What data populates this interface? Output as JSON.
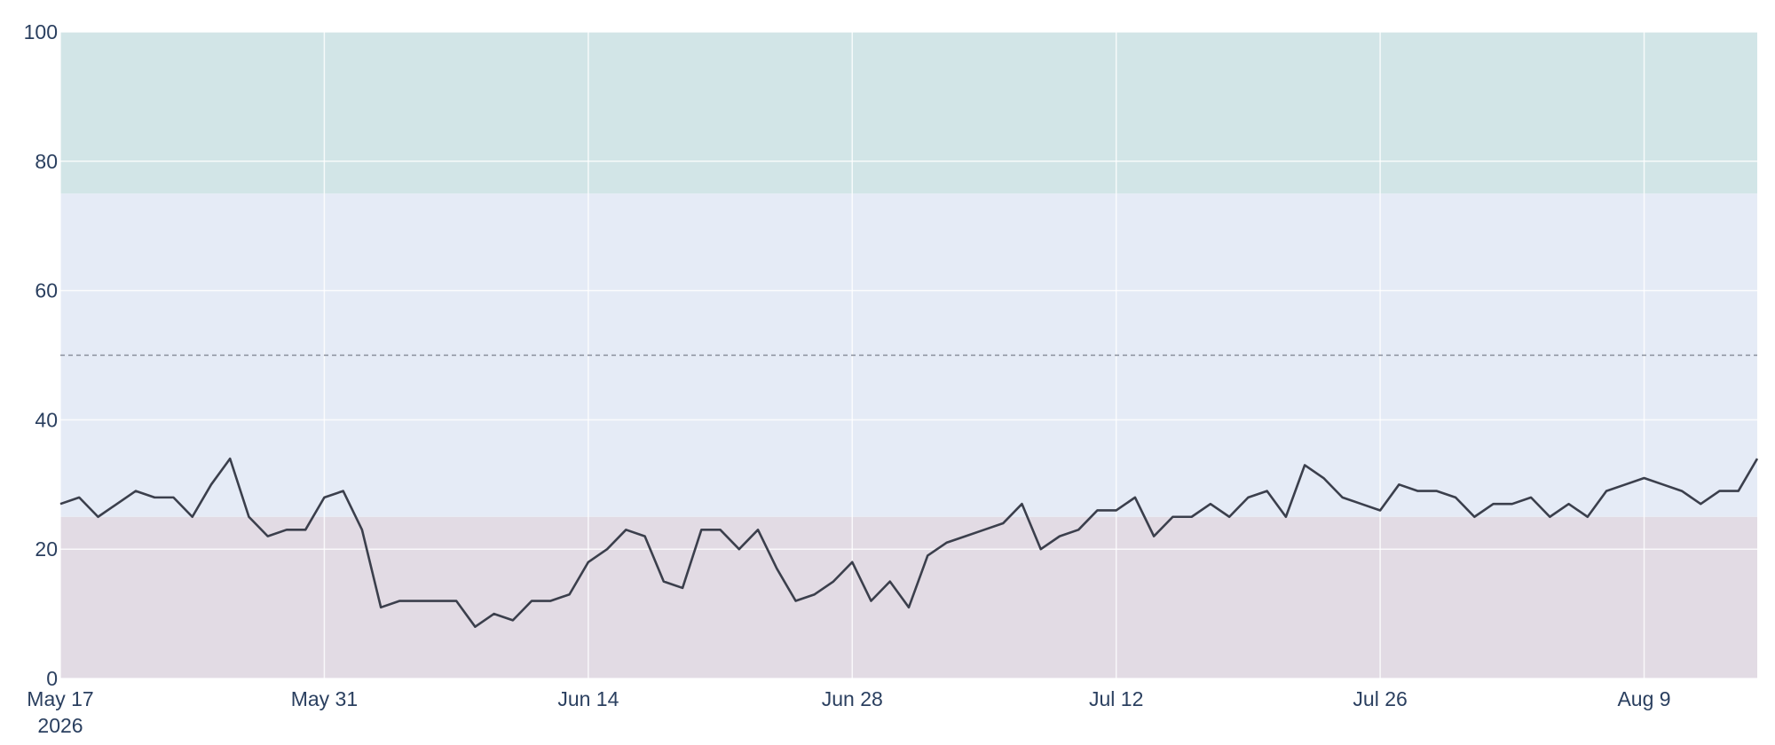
{
  "chart_data": {
    "type": "line",
    "x": [
      "2026-05-17",
      "2026-05-18",
      "2026-05-19",
      "2026-05-20",
      "2026-05-21",
      "2026-05-22",
      "2026-05-23",
      "2026-05-24",
      "2026-05-25",
      "2026-05-26",
      "2026-05-27",
      "2026-05-28",
      "2026-05-29",
      "2026-05-30",
      "2026-05-31",
      "2026-06-01",
      "2026-06-02",
      "2026-06-03",
      "2026-06-04",
      "2026-06-05",
      "2026-06-06",
      "2026-06-07",
      "2026-06-08",
      "2026-06-09",
      "2026-06-10",
      "2026-06-11",
      "2026-06-12",
      "2026-06-13",
      "2026-06-14",
      "2026-06-15",
      "2026-06-16",
      "2026-06-17",
      "2026-06-18",
      "2026-06-19",
      "2026-06-20",
      "2026-06-21",
      "2026-06-22",
      "2026-06-23",
      "2026-06-24",
      "2026-06-25",
      "2026-06-26",
      "2026-06-27",
      "2026-06-28",
      "2026-06-29",
      "2026-06-30",
      "2026-07-01",
      "2026-07-02",
      "2026-07-03",
      "2026-07-04",
      "2026-07-05",
      "2026-07-06",
      "2026-07-07",
      "2026-07-08",
      "2026-07-09",
      "2026-07-10",
      "2026-07-11",
      "2026-07-12",
      "2026-07-13",
      "2026-07-14",
      "2026-07-15",
      "2026-07-16",
      "2026-07-17",
      "2026-07-18",
      "2026-07-19",
      "2026-07-20",
      "2026-07-21",
      "2026-07-22",
      "2026-07-23",
      "2026-07-24",
      "2026-07-25",
      "2026-07-26",
      "2026-07-27",
      "2026-07-28",
      "2026-07-29",
      "2026-07-30",
      "2026-07-31",
      "2026-08-01",
      "2026-08-02",
      "2026-08-03",
      "2026-08-04",
      "2026-08-05",
      "2026-08-06",
      "2026-08-07",
      "2026-08-08",
      "2026-08-09",
      "2026-08-10",
      "2026-08-11",
      "2026-08-12",
      "2026-08-13",
      "2026-08-14",
      "2026-08-15"
    ],
    "values": [
      27,
      28,
      25,
      27,
      29,
      28,
      28,
      25,
      30,
      34,
      25,
      22,
      23,
      23,
      28,
      29,
      23,
      11,
      12,
      12,
      12,
      12,
      8,
      10,
      9,
      12,
      12,
      13,
      18,
      20,
      23,
      22,
      15,
      14,
      23,
      23,
      20,
      23,
      17,
      12,
      13,
      15,
      18,
      12,
      15,
      11,
      19,
      21,
      22,
      23,
      24,
      27,
      20,
      22,
      23,
      26,
      26,
      28,
      22,
      25,
      25,
      27,
      25,
      28,
      29,
      25,
      33,
      31,
      28,
      27,
      26,
      30,
      29,
      29,
      28,
      25,
      27,
      27,
      28,
      25,
      27,
      25,
      29,
      30,
      31,
      30,
      29,
      27,
      29,
      29,
      34
    ],
    "color": "#3b3f4c",
    "xlim": [
      "2026-05-17",
      "2026-08-15"
    ],
    "xticks": [
      {
        "value": "2026-05-17",
        "label": "May 17\n2026"
      },
      {
        "value": "2026-05-31",
        "label": "May 31"
      },
      {
        "value": "2026-06-14",
        "label": "Jun 14"
      },
      {
        "value": "2026-06-28",
        "label": "Jun 28"
      },
      {
        "value": "2026-07-12",
        "label": "Jul 12"
      },
      {
        "value": "2026-07-26",
        "label": "Jul 26"
      },
      {
        "value": "2026-08-09",
        "label": "Aug 9"
      }
    ],
    "ylim": [
      0,
      100
    ],
    "yticks": [
      0,
      20,
      40,
      60,
      80,
      100
    ],
    "grid": true,
    "bands": [
      {
        "from": 0,
        "to": 25,
        "color": "#e2dbe4"
      },
      {
        "from": 25,
        "to": 75,
        "color": "#e5ebf6"
      },
      {
        "from": 75,
        "to": 100,
        "color": "#d2e5e7"
      }
    ],
    "reference_line": 50
  }
}
